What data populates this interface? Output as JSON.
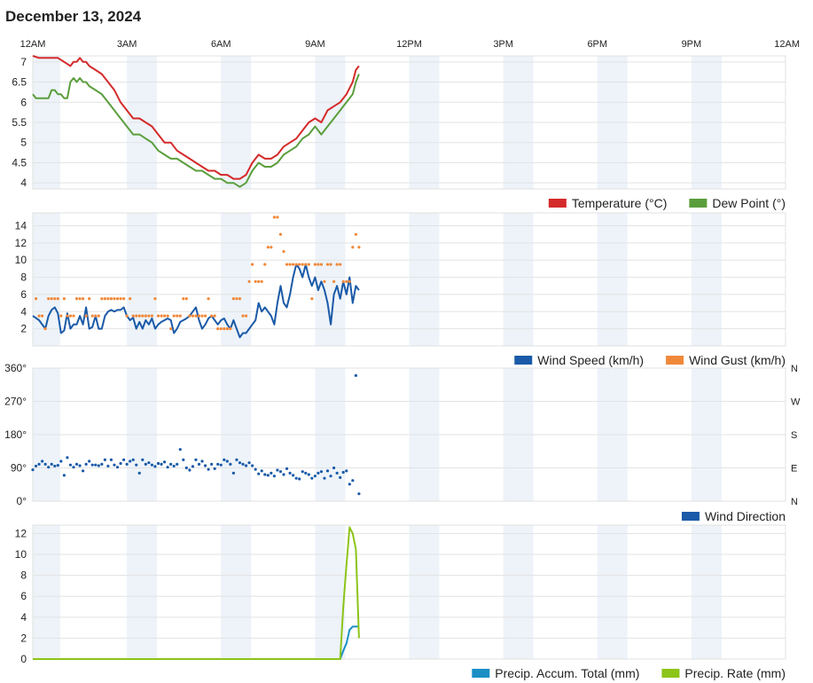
{
  "page": {
    "title": "December 13, 2024"
  },
  "time_axis": {
    "labels": [
      "12AM",
      "3AM",
      "6AM",
      "9AM",
      "12PM",
      "3PM",
      "6PM",
      "9PM",
      "12AM"
    ],
    "label_hours": [
      0,
      3,
      6,
      9,
      12,
      15,
      18,
      21,
      24
    ]
  },
  "chart_data": [
    {
      "type": "line",
      "legend": [
        "Temperature (°C)",
        "Dew Point (°)"
      ],
      "yticks": [
        4,
        4.5,
        5,
        5.5,
        6,
        6.5,
        7
      ],
      "ylim": [
        3.85,
        7.15
      ],
      "x_range_hours": [
        0,
        24
      ],
      "series": [
        {
          "name": "Temperature (°C)",
          "color": "#d42a2a",
          "x": [
            0,
            0.2,
            0.5,
            0.8,
            1.0,
            1.2,
            1.3,
            1.4,
            1.5,
            1.6,
            1.7,
            1.8,
            2.0,
            2.2,
            2.4,
            2.6,
            2.8,
            3.0,
            3.2,
            3.4,
            3.6,
            3.8,
            4.0,
            4.2,
            4.4,
            4.6,
            4.8,
            5.0,
            5.2,
            5.4,
            5.6,
            5.8,
            6.0,
            6.2,
            6.4,
            6.6,
            6.8,
            7.0,
            7.2,
            7.4,
            7.6,
            7.8,
            8.0,
            8.2,
            8.4,
            8.6,
            8.8,
            9.0,
            9.2,
            9.4,
            9.6,
            9.8,
            10.0,
            10.2,
            10.3,
            10.4
          ],
          "y": [
            7.2,
            7.1,
            7.1,
            7.1,
            7.0,
            6.9,
            7.0,
            7.0,
            7.1,
            7.0,
            7.0,
            6.9,
            6.8,
            6.7,
            6.5,
            6.3,
            6.0,
            5.8,
            5.6,
            5.6,
            5.5,
            5.4,
            5.2,
            5.0,
            5.0,
            4.8,
            4.7,
            4.6,
            4.5,
            4.4,
            4.3,
            4.3,
            4.2,
            4.2,
            4.1,
            4.1,
            4.2,
            4.5,
            4.7,
            4.6,
            4.6,
            4.7,
            4.9,
            5.0,
            5.1,
            5.3,
            5.5,
            5.6,
            5.5,
            5.8,
            5.9,
            6.0,
            6.2,
            6.5,
            6.8,
            6.9
          ]
        },
        {
          "name": "Dew Point (°)",
          "color": "#5a9e3c",
          "x": [
            0,
            0.1,
            0.3,
            0.5,
            0.6,
            0.7,
            0.8,
            0.9,
            1.0,
            1.1,
            1.2,
            1.3,
            1.4,
            1.5,
            1.6,
            1.7,
            1.8,
            2.0,
            2.2,
            2.4,
            2.6,
            2.8,
            3.0,
            3.2,
            3.4,
            3.6,
            3.8,
            4.0,
            4.2,
            4.4,
            4.6,
            4.8,
            5.0,
            5.2,
            5.4,
            5.6,
            5.8,
            6.0,
            6.2,
            6.4,
            6.6,
            6.8,
            7.0,
            7.2,
            7.4,
            7.6,
            7.8,
            8.0,
            8.2,
            8.4,
            8.6,
            8.8,
            9.0,
            9.2,
            9.4,
            9.6,
            9.8,
            10.0,
            10.2,
            10.3,
            10.4
          ],
          "y": [
            6.2,
            6.1,
            6.1,
            6.1,
            6.3,
            6.3,
            6.2,
            6.2,
            6.1,
            6.1,
            6.5,
            6.6,
            6.5,
            6.6,
            6.5,
            6.5,
            6.4,
            6.3,
            6.2,
            6.0,
            5.8,
            5.6,
            5.4,
            5.2,
            5.2,
            5.1,
            5.0,
            4.8,
            4.7,
            4.6,
            4.6,
            4.5,
            4.4,
            4.3,
            4.3,
            4.2,
            4.1,
            4.1,
            4.0,
            4.0,
            3.9,
            4.0,
            4.3,
            4.5,
            4.4,
            4.4,
            4.5,
            4.7,
            4.8,
            4.9,
            5.1,
            5.2,
            5.4,
            5.2,
            5.4,
            5.6,
            5.8,
            6.0,
            6.2,
            6.5,
            6.7
          ]
        }
      ]
    },
    {
      "type": "line+scatter",
      "legend": [
        "Wind Speed (km/h)",
        "Wind Gust (km/h)"
      ],
      "yticks": [
        2,
        4,
        6,
        8,
        10,
        12,
        14
      ],
      "ylim": [
        0,
        15.5
      ],
      "x_range_hours": [
        0,
        24
      ],
      "series": [
        {
          "name": "Wind Speed (km/h)",
          "color": "#1a5aa8",
          "kind": "line",
          "x": [
            0,
            0.2,
            0.4,
            0.5,
            0.6,
            0.7,
            0.8,
            0.9,
            1.0,
            1.1,
            1.2,
            1.3,
            1.4,
            1.5,
            1.6,
            1.7,
            1.8,
            1.9,
            2.0,
            2.1,
            2.2,
            2.3,
            2.4,
            2.5,
            2.6,
            2.7,
            2.8,
            2.9,
            3.0,
            3.1,
            3.2,
            3.3,
            3.4,
            3.5,
            3.6,
            3.7,
            3.8,
            3.9,
            4.0,
            4.1,
            4.2,
            4.3,
            4.4,
            4.5,
            4.6,
            4.7,
            4.8,
            4.9,
            5.0,
            5.1,
            5.2,
            5.3,
            5.4,
            5.5,
            5.6,
            5.7,
            5.8,
            5.9,
            6.0,
            6.1,
            6.2,
            6.3,
            6.4,
            6.5,
            6.6,
            6.7,
            6.8,
            6.9,
            7.0,
            7.1,
            7.2,
            7.3,
            7.4,
            7.5,
            7.6,
            7.7,
            7.8,
            7.9,
            8.0,
            8.1,
            8.2,
            8.3,
            8.4,
            8.5,
            8.6,
            8.7,
            8.8,
            8.9,
            9.0,
            9.1,
            9.2,
            9.3,
            9.4,
            9.5,
            9.6,
            9.7,
            9.8,
            9.9,
            10.0,
            10.1,
            10.2,
            10.3,
            10.4
          ],
          "y": [
            3.5,
            3.0,
            2.0,
            3.5,
            4.2,
            4.5,
            3.8,
            1.5,
            1.8,
            3.8,
            2.0,
            2.5,
            2.5,
            3.5,
            2.5,
            4.5,
            2.0,
            2.2,
            3.5,
            2.0,
            2.0,
            3.5,
            4.0,
            4.2,
            4.0,
            4.2,
            4.2,
            4.5,
            3.5,
            3.0,
            3.3,
            2.0,
            2.8,
            2.0,
            3.0,
            2.5,
            3.2,
            2.0,
            2.5,
            2.8,
            3.0,
            3.2,
            3.0,
            1.5,
            2.0,
            2.8,
            3.0,
            3.2,
            3.5,
            4.0,
            4.5,
            3.0,
            2.0,
            2.5,
            3.2,
            3.5,
            3.0,
            2.5,
            3.0,
            3.2,
            2.5,
            2.0,
            3.0,
            2.0,
            1.0,
            1.5,
            1.5,
            2.0,
            2.5,
            3.0,
            5.0,
            4.0,
            4.5,
            4.0,
            3.5,
            2.5,
            5.0,
            7.0,
            5.0,
            4.5,
            6.0,
            8.0,
            9.5,
            9.0,
            8.0,
            9.5,
            8.0,
            7.0,
            8.0,
            6.5,
            7.5,
            6.5,
            5.0,
            2.5,
            6.0,
            7.0,
            5.5,
            7.5,
            6.0,
            8.0,
            5.0,
            7.0,
            6.5
          ]
        },
        {
          "name": "Wind Gust (km/h)",
          "color": "#f0883a",
          "kind": "scatter",
          "x": [
            0.1,
            0.2,
            0.3,
            0.4,
            0.5,
            0.6,
            0.7,
            0.8,
            0.9,
            1.0,
            1.1,
            1.2,
            1.3,
            1.4,
            1.5,
            1.6,
            1.7,
            1.8,
            1.9,
            2.0,
            2.1,
            2.2,
            2.3,
            2.4,
            2.5,
            2.6,
            2.7,
            2.8,
            2.9,
            3.0,
            3.1,
            3.2,
            3.3,
            3.4,
            3.5,
            3.6,
            3.7,
            3.8,
            3.9,
            4.0,
            4.1,
            4.2,
            4.3,
            4.4,
            4.5,
            4.6,
            4.7,
            4.8,
            4.9,
            5.0,
            5.1,
            5.2,
            5.3,
            5.4,
            5.5,
            5.6,
            5.7,
            5.8,
            5.9,
            6.0,
            6.1,
            6.2,
            6.3,
            6.4,
            6.5,
            6.6,
            6.7,
            6.8,
            6.9,
            7.0,
            7.1,
            7.2,
            7.3,
            7.4,
            7.5,
            7.6,
            7.7,
            7.8,
            7.9,
            8.0,
            8.1,
            8.2,
            8.3,
            8.4,
            8.5,
            8.6,
            8.7,
            8.8,
            8.9,
            9.0,
            9.1,
            9.2,
            9.3,
            9.4,
            9.5,
            9.6,
            9.7,
            9.8,
            9.9,
            10.0,
            10.1,
            10.2,
            10.3,
            10.4
          ],
          "y": [
            5.5,
            3.5,
            3.5,
            2.0,
            5.5,
            5.5,
            5.5,
            5.5,
            3.5,
            5.5,
            3.5,
            3.5,
            3.5,
            5.5,
            5.5,
            5.5,
            3.5,
            5.5,
            3.5,
            3.5,
            3.5,
            5.5,
            5.5,
            5.5,
            5.5,
            5.5,
            5.5,
            5.5,
            5.5,
            3.5,
            5.5,
            3.5,
            3.5,
            3.5,
            3.5,
            3.5,
            3.5,
            3.5,
            5.5,
            3.5,
            3.5,
            3.5,
            3.5,
            2.0,
            3.5,
            3.5,
            3.5,
            5.5,
            5.5,
            3.5,
            3.5,
            3.5,
            3.5,
            3.5,
            3.5,
            5.5,
            3.5,
            3.5,
            2.0,
            2.0,
            2.0,
            2.0,
            2.0,
            5.5,
            5.5,
            5.5,
            3.5,
            3.5,
            7.5,
            9.5,
            7.5,
            7.5,
            7.5,
            9.5,
            11.5,
            11.5,
            15.0,
            15.0,
            13.0,
            11.0,
            9.5,
            9.5,
            9.5,
            9.5,
            9.5,
            9.5,
            9.5,
            9.5,
            5.5,
            9.5,
            9.5,
            9.5,
            7.5,
            9.5,
            9.5,
            7.5,
            9.5,
            9.5,
            7.5,
            7.5,
            7.5,
            11.5,
            13.0,
            11.5
          ]
        }
      ]
    },
    {
      "type": "scatter",
      "legend": [
        "Wind Direction"
      ],
      "yticks": [
        0,
        90,
        180,
        270,
        360
      ],
      "ytick_labels": [
        "0°",
        "90°",
        "180°",
        "270°",
        "360°"
      ],
      "right_labels": [
        "N",
        "E",
        "S",
        "W",
        "N"
      ],
      "ylim": [
        0,
        360
      ],
      "x_range_hours": [
        0,
        24
      ],
      "series": [
        {
          "name": "Wind Direction",
          "color": "#1a5aa8",
          "x": [
            0.0,
            0.1,
            0.2,
            0.3,
            0.4,
            0.5,
            0.6,
            0.7,
            0.8,
            0.9,
            1.0,
            1.1,
            1.2,
            1.3,
            1.4,
            1.5,
            1.6,
            1.7,
            1.8,
            1.9,
            2.0,
            2.1,
            2.2,
            2.3,
            2.4,
            2.5,
            2.6,
            2.7,
            2.8,
            2.9,
            3.0,
            3.1,
            3.2,
            3.3,
            3.4,
            3.5,
            3.6,
            3.7,
            3.8,
            3.9,
            4.0,
            4.1,
            4.2,
            4.3,
            4.4,
            4.5,
            4.6,
            4.7,
            4.8,
            4.9,
            5.0,
            5.1,
            5.2,
            5.3,
            5.4,
            5.5,
            5.6,
            5.7,
            5.8,
            5.9,
            6.0,
            6.1,
            6.2,
            6.3,
            6.4,
            6.5,
            6.6,
            6.7,
            6.8,
            6.9,
            7.0,
            7.1,
            7.2,
            7.3,
            7.4,
            7.5,
            7.6,
            7.7,
            7.8,
            7.9,
            8.0,
            8.1,
            8.2,
            8.3,
            8.4,
            8.5,
            8.6,
            8.7,
            8.8,
            8.9,
            9.0,
            9.1,
            9.2,
            9.3,
            9.4,
            9.5,
            9.6,
            9.7,
            9.8,
            9.9,
            10.0,
            10.1,
            10.2,
            10.3,
            10.4
          ],
          "y": [
            85,
            95,
            100,
            108,
            100,
            92,
            100,
            95,
            97,
            108,
            70,
            118,
            98,
            92,
            100,
            96,
            82,
            100,
            108,
            98,
            98,
            96,
            100,
            112,
            95,
            112,
            98,
            92,
            102,
            112,
            100,
            108,
            112,
            98,
            76,
            112,
            100,
            104,
            98,
            94,
            102,
            100,
            106,
            92,
            100,
            95,
            100,
            140,
            112,
            90,
            84,
            94,
            112,
            100,
            108,
            96,
            86,
            100,
            88,
            100,
            98,
            112,
            108,
            100,
            76,
            112,
            104,
            100,
            96,
            104,
            96,
            86,
            74,
            82,
            72,
            70,
            76,
            68,
            84,
            80,
            72,
            88,
            76,
            70,
            62,
            60,
            80,
            76,
            72,
            62,
            68,
            76,
            80,
            62,
            82,
            68,
            90,
            76,
            64,
            78,
            82,
            46,
            56,
            340,
            20
          ]
        }
      ]
    },
    {
      "type": "line",
      "legend": [
        "Precip. Accum. Total (mm)",
        "Precip. Rate (mm)"
      ],
      "yticks": [
        0,
        2,
        4,
        6,
        8,
        10,
        12
      ],
      "ylim": [
        0,
        12.8
      ],
      "x_range_hours": [
        0,
        24
      ],
      "series": [
        {
          "name": "Precip. Accum. Total (mm)",
          "color": "#1a8fc4",
          "x": [
            0,
            9.8,
            9.9,
            10.0,
            10.1,
            10.2,
            10.3,
            10.4
          ],
          "y": [
            0,
            0,
            0.8,
            1.5,
            2.8,
            3.1,
            3.1,
            3.1
          ]
        },
        {
          "name": "Precip. Rate (mm)",
          "color": "#8cc418",
          "x": [
            0,
            9.8,
            9.9,
            10.0,
            10.1,
            10.2,
            10.3,
            10.4
          ],
          "y": [
            0,
            0,
            5.0,
            9.0,
            12.6,
            12.0,
            10.5,
            2.0
          ]
        }
      ]
    }
  ]
}
